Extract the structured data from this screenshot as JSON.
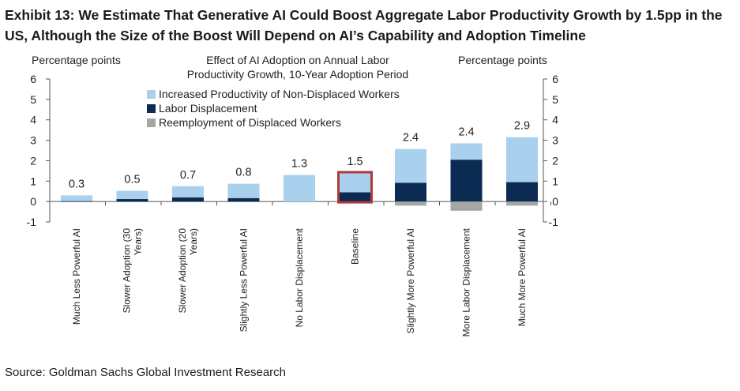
{
  "exhibit_title": "Exhibit 13: We Estimate That Generative AI Could Boost Aggregate Labor Productivity Growth by 1.5pp in the US, Although the Size of the Boost Will Depend on AI’s Capability and Adoption Timeline",
  "source": "Source: Goldman Sachs Global Investment Research",
  "colors": {
    "non_displaced": "#a9d0ec",
    "displacement": "#0b2b52",
    "reemployment": "#a6a6a6",
    "highlight": "#b03a3a"
  },
  "chart_data": {
    "type": "bar",
    "stacked": true,
    "title_lines": [
      "Effect of AI Adoption on Annual Labor",
      "Productivity Growth, 10-Year Adoption Period"
    ],
    "ylabel_left": "Percentage  points",
    "ylabel_right": "Percentage  points",
    "ylim": [
      -1,
      6
    ],
    "yticks": [
      -1,
      0,
      1,
      2,
      3,
      4,
      5,
      6
    ],
    "categories": [
      [
        "Much Less Powerful AI"
      ],
      [
        "Slower Adoption (30",
        "Years)"
      ],
      [
        "Slower Adoption (20",
        "Years)"
      ],
      [
        "Slightly Less Powerful AI"
      ],
      [
        "No Labor Displacement"
      ],
      [
        "Baseline"
      ],
      [
        "Slightly More Powerful AI"
      ],
      [
        "More Labor Displacement"
      ],
      [
        "Much More Powerful AI"
      ]
    ],
    "series": [
      {
        "name": "Increased Productivity of Non-Displaced Workers",
        "color_key": "non_displaced",
        "values": [
          0.28,
          0.4,
          0.55,
          0.7,
          1.3,
          0.95,
          1.65,
          0.8,
          2.2
        ]
      },
      {
        "name": "Labor Displacement",
        "color_key": "displacement",
        "values": [
          0.02,
          0.12,
          0.2,
          0.17,
          0.0,
          0.45,
          0.92,
          2.05,
          0.95
        ]
      },
      {
        "name": "Reemployment of Displaced Workers",
        "color_key": "reemployment",
        "values": [
          0.0,
          0.0,
          0.0,
          0.0,
          0.0,
          0.0,
          -0.2,
          -0.45,
          -0.2
        ]
      }
    ],
    "totals": [
      "0.3",
      "0.5",
      "0.7",
      "0.8",
      "1.3",
      "1.5",
      "2.4",
      "2.4",
      "2.9"
    ],
    "highlighted_category_index": 5,
    "legend_position": "top-left"
  }
}
